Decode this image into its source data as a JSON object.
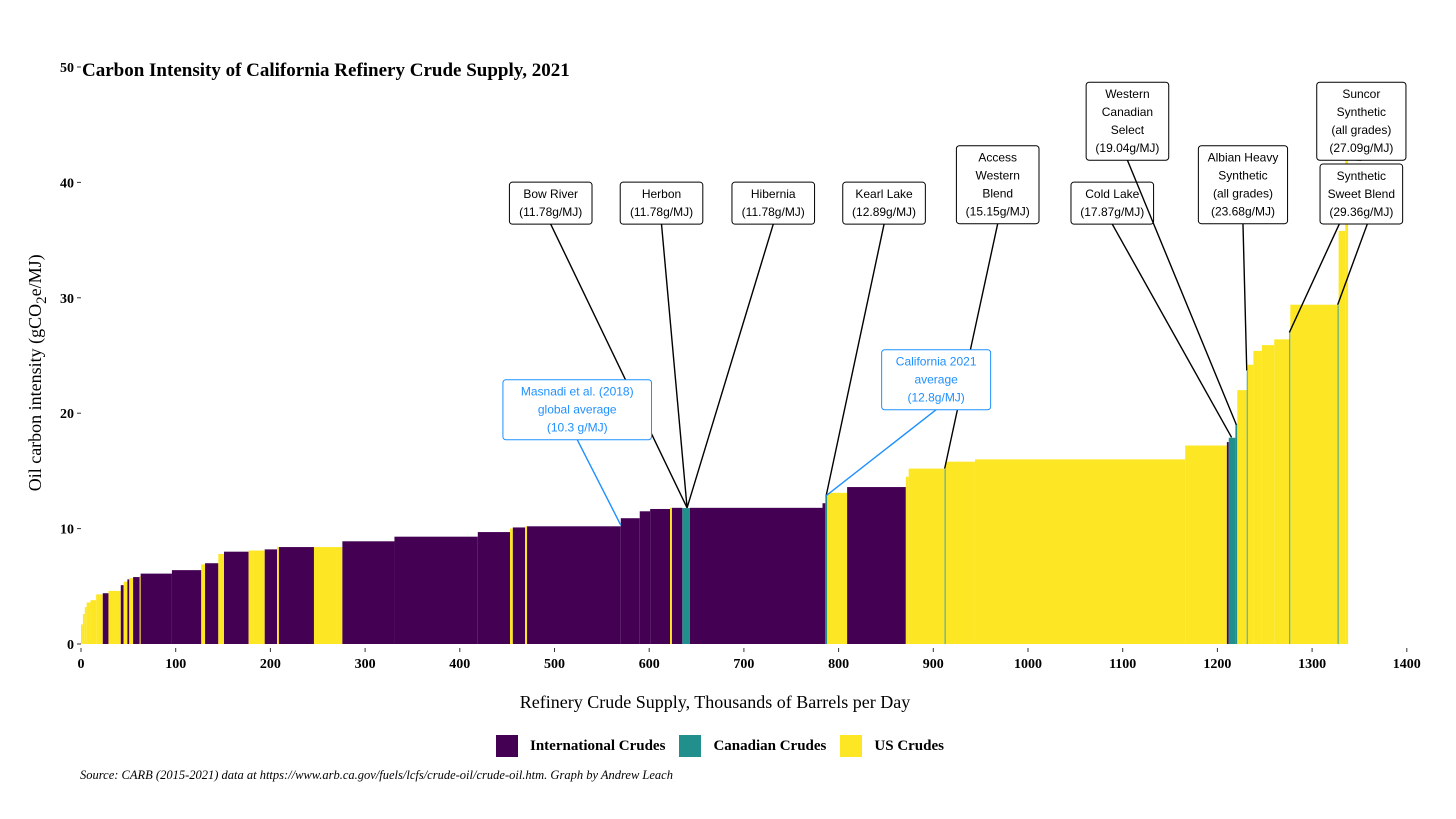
{
  "chart_data": {
    "type": "bar",
    "title": "Carbon Intensity of California Refinery Crude Supply, 2021",
    "xlabel": "Refinery Crude Supply, Thousands of Barrels per Day",
    "ylabel": "Oil carbon intensity (gCO2e/MJ)",
    "xlim": [
      0,
      1420
    ],
    "ylim": [
      0,
      50
    ],
    "xticks": [
      0,
      100,
      200,
      300,
      400,
      500,
      600,
      700,
      800,
      900,
      1000,
      1100,
      1200,
      1300,
      1400
    ],
    "yticks": [
      0,
      10,
      20,
      30,
      40,
      50
    ],
    "colors": {
      "International Crudes": "#440154",
      "Canadian Crudes": "#21908C",
      "US Crudes": "#FDE725"
    },
    "legend": [
      "International Crudes",
      "Canadian Crudes",
      "US Crudes"
    ],
    "legend_position": "bottom",
    "bars": [
      [
        0,
        2,
        1.7,
        "US Crudes"
      ],
      [
        2,
        4,
        2.6,
        "US Crudes"
      ],
      [
        4,
        6,
        3.2,
        "US Crudes"
      ],
      [
        6,
        10,
        3.6,
        "US Crudes"
      ],
      [
        10,
        16,
        3.8,
        "US Crudes"
      ],
      [
        16,
        23,
        4.3,
        "US Crudes"
      ],
      [
        23,
        29,
        4.4,
        "International Crudes"
      ],
      [
        29,
        42,
        4.6,
        "US Crudes"
      ],
      [
        42,
        45,
        5.1,
        "International Crudes"
      ],
      [
        45,
        49,
        5.4,
        "US Crudes"
      ],
      [
        49,
        51,
        5.6,
        "International Crudes"
      ],
      [
        51,
        55,
        5.7,
        "US Crudes"
      ],
      [
        55,
        62,
        5.8,
        "International Crudes"
      ],
      [
        62,
        63,
        5.9,
        "US Crudes"
      ],
      [
        63,
        96,
        6.1,
        "International Crudes"
      ],
      [
        96,
        127,
        6.4,
        "International Crudes"
      ],
      [
        127,
        131,
        6.9,
        "US Crudes"
      ],
      [
        131,
        145,
        7.0,
        "International Crudes"
      ],
      [
        145,
        151,
        7.8,
        "US Crudes"
      ],
      [
        151,
        177,
        8.0,
        "International Crudes"
      ],
      [
        177,
        194,
        8.1,
        "US Crudes"
      ],
      [
        194,
        207,
        8.2,
        "International Crudes"
      ],
      [
        207,
        209,
        8.4,
        "US Crudes"
      ],
      [
        209,
        246,
        8.4,
        "International Crudes"
      ],
      [
        246,
        276,
        8.4,
        "US Crudes"
      ],
      [
        276,
        331,
        8.9,
        "International Crudes"
      ],
      [
        331,
        419,
        9.3,
        "International Crudes"
      ],
      [
        419,
        453,
        9.7,
        "International Crudes"
      ],
      [
        453,
        456,
        10.0,
        "US Crudes"
      ],
      [
        456,
        469,
        10.1,
        "International Crudes"
      ],
      [
        469,
        471,
        10.2,
        "US Crudes"
      ],
      [
        471,
        570,
        10.2,
        "International Crudes"
      ],
      [
        570,
        590,
        10.9,
        "International Crudes"
      ],
      [
        590,
        601,
        11.5,
        "International Crudes"
      ],
      [
        601,
        622,
        11.7,
        "International Crudes"
      ],
      [
        622,
        624,
        11.8,
        "US Crudes"
      ],
      [
        624,
        635,
        11.8,
        "International Crudes"
      ],
      [
        635,
        643,
        11.78,
        "Canadian Crudes"
      ],
      [
        643,
        783,
        11.8,
        "International Crudes"
      ],
      [
        783,
        786,
        12.2,
        "International Crudes"
      ],
      [
        786,
        788,
        12.89,
        "Canadian Crudes"
      ],
      [
        788,
        809,
        13.1,
        "US Crudes"
      ],
      [
        809,
        871,
        13.6,
        "International Crudes"
      ],
      [
        871,
        874,
        14.5,
        "US Crudes"
      ],
      [
        874,
        912,
        15.2,
        "US Crudes"
      ],
      [
        912,
        913,
        15.15,
        "Canadian Crudes"
      ],
      [
        913,
        944,
        15.8,
        "US Crudes"
      ],
      [
        944,
        1166,
        16.0,
        "US Crudes"
      ],
      [
        1166,
        1210,
        17.2,
        "US Crudes"
      ],
      [
        1210,
        1212,
        17.5,
        "International Crudes"
      ],
      [
        1212,
        1219,
        17.87,
        "Canadian Crudes"
      ],
      [
        1219,
        1221,
        19.04,
        "Canadian Crudes"
      ],
      [
        1221,
        1231,
        22.0,
        "US Crudes"
      ],
      [
        1231,
        1232,
        23.68,
        "Canadian Crudes"
      ],
      [
        1232,
        1238,
        24.2,
        "US Crudes"
      ],
      [
        1238,
        1247,
        25.4,
        "US Crudes"
      ],
      [
        1247,
        1260,
        25.9,
        "US Crudes"
      ],
      [
        1260,
        1276,
        26.4,
        "US Crudes"
      ],
      [
        1276,
        1277,
        27.09,
        "Canadian Crudes"
      ],
      [
        1277,
        1327,
        29.4,
        "US Crudes"
      ],
      [
        1327,
        1328,
        29.36,
        "Canadian Crudes"
      ],
      [
        1328,
        1335,
        35.8,
        "US Crudes"
      ],
      [
        1335,
        1338,
        42.0,
        "US Crudes"
      ]
    ],
    "annotations": [
      {
        "lines": [
          "Bow River",
          "(11.78g/MJ)"
        ],
        "label_x": 496,
        "label_y": 38.2,
        "points": [
          [
            640,
            11.8
          ]
        ],
        "color": "#000000"
      },
      {
        "lines": [
          "Herbon",
          "(11.78g/MJ)"
        ],
        "label_x": 613,
        "label_y": 38.2,
        "points": [
          [
            640,
            11.8
          ]
        ],
        "color": "#000000"
      },
      {
        "lines": [
          "Hibernia",
          "(11.78g/MJ)"
        ],
        "label_x": 731,
        "label_y": 38.2,
        "points": [
          [
            640,
            11.8
          ]
        ],
        "color": "#000000"
      },
      {
        "lines": [
          "Kearl Lake",
          "(12.89g/MJ)"
        ],
        "label_x": 848,
        "label_y": 38.2,
        "points": [
          [
            787,
            12.9
          ]
        ],
        "color": "#000000"
      },
      {
        "lines": [
          "Access",
          "Western",
          "Blend",
          "(15.15g/MJ)"
        ],
        "label_x": 968,
        "label_y": 39.8,
        "points": [
          [
            912,
            15.2
          ]
        ],
        "color": "#000000"
      },
      {
        "lines": [
          "Cold Lake",
          "(17.87g/MJ)"
        ],
        "label_x": 1089,
        "label_y": 38.2,
        "points": [
          [
            1215,
            17.9
          ]
        ],
        "color": "#000000"
      },
      {
        "lines": [
          "Western",
          "Canadian",
          "Select",
          "(19.04g/MJ)"
        ],
        "label_x": 1105,
        "label_y": 45.3,
        "points": [
          [
            1220,
            19.0
          ]
        ],
        "color": "#000000"
      },
      {
        "lines": [
          "Albian Heavy",
          "Synthetic",
          "(all grades)",
          "(23.68g/MJ)"
        ],
        "label_x": 1227,
        "label_y": 39.8,
        "points": [
          [
            1231,
            23.7
          ]
        ],
        "color": "#000000"
      },
      {
        "lines": [
          "Suncor",
          "Synthetic",
          "(all grades)",
          "(27.09g/MJ)"
        ],
        "label_x": 1352,
        "label_y": 45.3,
        "points": [
          [
            1336,
            42
          ]
        ],
        "color": "#000000"
      },
      {
        "lines": [
          "Synthetic",
          "Sweet Blend",
          "(29.36g/MJ)"
        ],
        "label_x": 1352,
        "label_y": 39.0,
        "points": [
          [
            1276,
            27.0
          ],
          [
            1327,
            29.4
          ]
        ],
        "color": "#000000"
      },
      {
        "lines": [
          "Masnadi et al. (2018)",
          "global average",
          "(10.3 g/MJ)"
        ],
        "label_x": 524,
        "label_y": 20.3,
        "points": [
          [
            570,
            10.3
          ]
        ],
        "color": "#1E90FF"
      },
      {
        "lines": [
          "California 2021",
          "average",
          "(12.8g/MJ)"
        ],
        "label_x": 903,
        "label_y": 22.9,
        "points": [
          [
            786,
            12.8
          ]
        ],
        "color": "#1E90FF"
      }
    ],
    "source": "Source: CARB (2015-2021) data at https://www.arb.ca.gov/fuels/lcfs/crude-oil/crude-oil.htm. Graph by Andrew Leach"
  }
}
